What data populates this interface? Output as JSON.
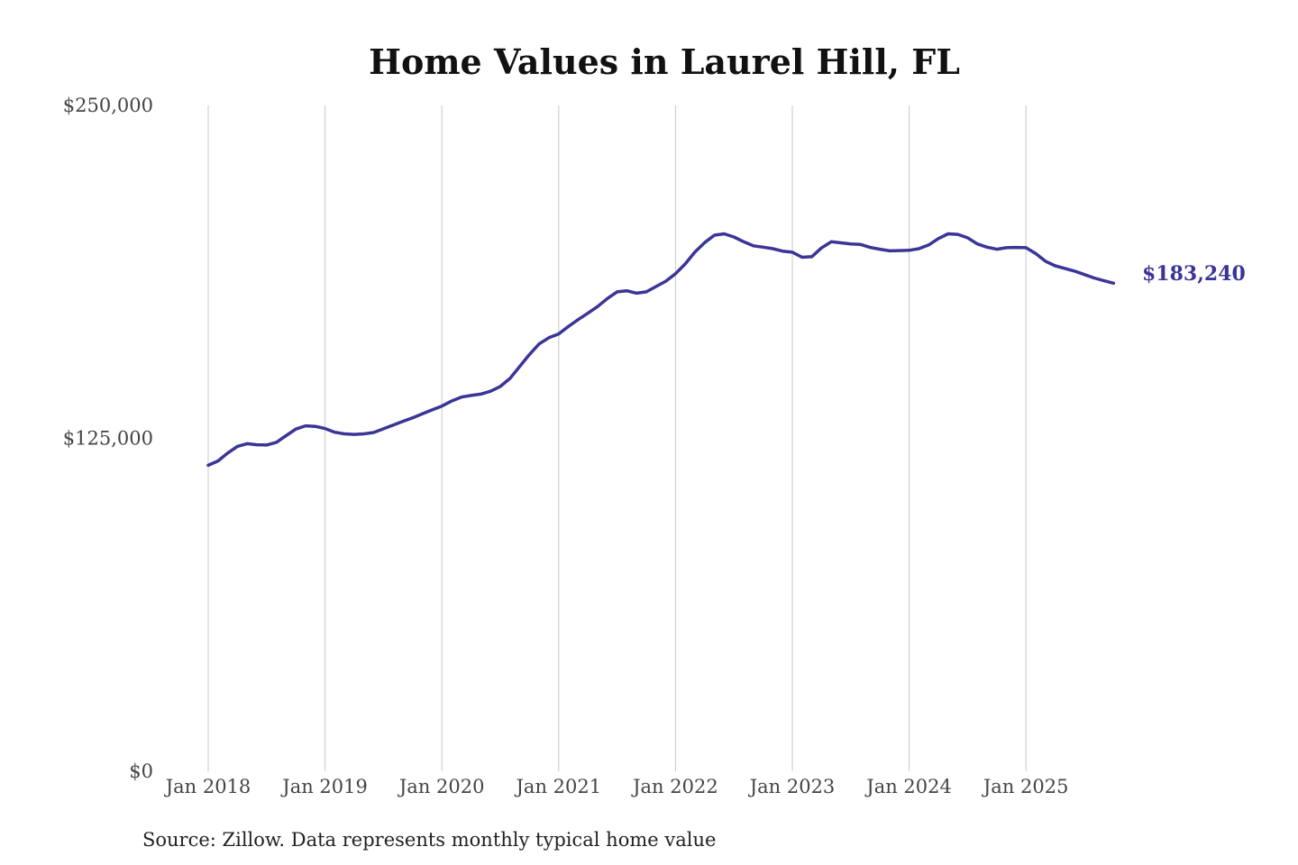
{
  "chart_data": {
    "type": "line",
    "title": "Home Values in Laurel Hill, FL",
    "xlabel": "",
    "ylabel": "",
    "ylim": [
      0,
      250000
    ],
    "y_ticks": [
      {
        "value": 0,
        "label": "$0"
      },
      {
        "value": 125000,
        "label": "$125,000"
      },
      {
        "value": 250000,
        "label": "$250,000"
      }
    ],
    "x_ticks": [
      "Jan 2018",
      "Jan 2019",
      "Jan 2020",
      "Jan 2021",
      "Jan 2022",
      "Jan 2023",
      "Jan 2024",
      "Jan 2025"
    ],
    "x_start": "2018-01",
    "x_end": "2025-10",
    "grid": "vertical",
    "line_color": "#3a3596",
    "end_label": "$183,240",
    "source": "Source: Zillow. Data represents monthly typical home value",
    "series": [
      {
        "values": [
          114900,
          116500,
          119500,
          122000,
          123000,
          122600,
          122500,
          123500,
          126000,
          128500,
          129700,
          129500,
          128700,
          127300,
          126700,
          126500,
          126700,
          127200,
          128600,
          130000,
          131400,
          132700,
          134200,
          135700,
          137100,
          139000,
          140500,
          141100,
          141600,
          142700,
          144500,
          147500,
          152000,
          156500,
          160500,
          162800,
          164200,
          167000,
          169600,
          172000,
          174500,
          177500,
          180000,
          180400,
          179500,
          180000,
          182000,
          184000,
          186800,
          190500,
          195000,
          198500,
          201300,
          201800,
          200600,
          198800,
          197300,
          196800,
          196200,
          195300,
          194900,
          193000,
          193200,
          196500,
          198800,
          198400,
          198000,
          197800,
          196700,
          196000,
          195400,
          195500,
          195600,
          196200,
          197600,
          200000,
          201800,
          201600,
          200300,
          198000,
          196800,
          196000,
          196600,
          196700,
          196600,
          194400,
          191500,
          189800,
          188800,
          187800,
          186500,
          185200,
          184200,
          183240
        ]
      }
    ]
  }
}
